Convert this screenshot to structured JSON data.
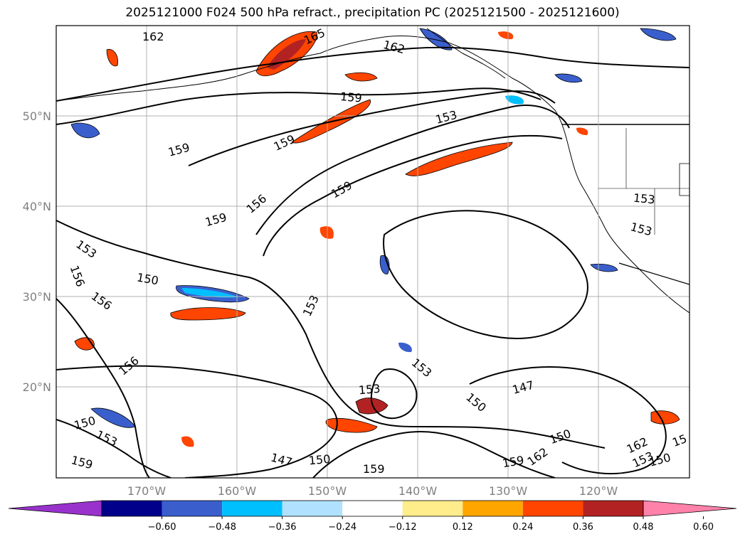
{
  "title": "2025121000 F024 500 hPa refract., precipitation PC (2025121500 - 2025121600)",
  "map": {
    "lat_labels": [
      "50°N",
      "40°N",
      "30°N",
      "20°N"
    ],
    "lon_labels": [
      "170°W",
      "160°W",
      "150°W",
      "140°W",
      "130°W",
      "120°W"
    ],
    "contour_labels": [
      "162",
      "165",
      "162",
      "159",
      "153",
      "159",
      "159",
      "156",
      "159",
      "153",
      "153",
      "156",
      "159",
      "150",
      "153",
      "156",
      "150",
      "153",
      "156",
      "159",
      "153",
      "147",
      "150",
      "150",
      "159",
      "147",
      "153",
      "162",
      "159",
      "162",
      "153",
      "150",
      "15",
      "153",
      "150"
    ]
  },
  "colorbar": {
    "ticks": [
      "−0.60",
      "−0.48",
      "−0.36",
      "−0.24",
      "−0.12",
      "0.12",
      "0.24",
      "0.36",
      "0.48",
      "0.60"
    ],
    "colors": [
      "#9932cc",
      "#00008b",
      "#3a5fcd",
      "#00bfff",
      "#b0e2ff",
      "#ffffff",
      "#ffec8b",
      "#ffa500",
      "#ff4500",
      "#b22222",
      "#ff82ab"
    ]
  }
}
